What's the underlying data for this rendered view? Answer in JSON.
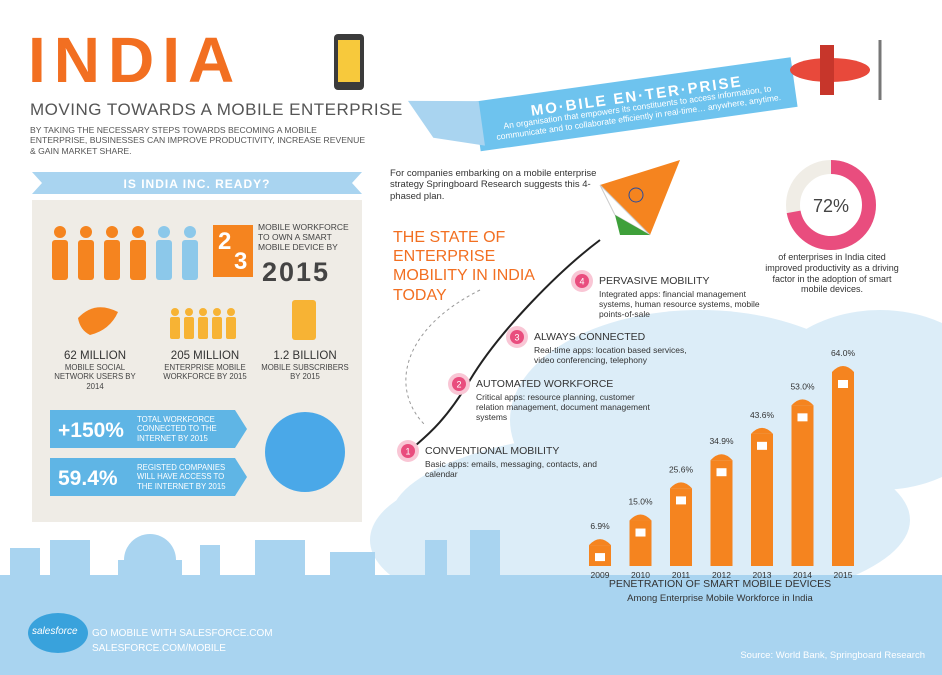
{
  "header": {
    "title": "INDIA",
    "subtitle": "MOVING TOWARDS A MOBILE ENTERPRISE",
    "intro": "BY TAKING THE NECESSARY STEPS TOWARDS BECOMING A MOBILE ENTERPRISE, BUSINESSES CAN IMPROVE PRODUCTIVITY, INCREASE REVENUE & GAIN MARKET SHARE."
  },
  "banner": {
    "title": "MO·BILE EN·TER·PRISE",
    "text": "An organisation that empowers its constituents to access information, to communicate and to collaborate efficiently in real-time… anywhere, anytime."
  },
  "ready": {
    "heading": "IS INDIA INC. READY?",
    "numerator": "2",
    "denominator": "3",
    "fraction_text": "MOBILE WORKFORCE TO OWN A SMART MOBILE DEVICE BY",
    "year": "2015",
    "stats": [
      {
        "value": "62 MILLION",
        "label": "MOBILE SOCIAL NETWORK USERS BY 2014"
      },
      {
        "value": "205 MILLION",
        "label": "ENTERPRISE MOBILE WORKFORCE BY 2015"
      },
      {
        "value": "1.2 BILLION",
        "label": "MOBILE SUBSCRIBERS BY 2015"
      }
    ],
    "highlights": [
      {
        "value": "+150%",
        "label": "TOTAL WORKFORCE CONNECTED TO THE INTERNET BY 2015"
      },
      {
        "value": "59.4%",
        "label": "REGISTED COMPANIES WILL HAVE ACCESS TO THE INTERNET BY 2015"
      }
    ]
  },
  "phases": {
    "intro": "For companies embarking on a mobile enterprise strategy Springboard Research suggests this 4-phased plan.",
    "heading": "THE STATE OF ENTERPRISE MOBILITY IN INDIA TODAY",
    "steps": [
      {
        "number": "1",
        "title": "CONVENTIONAL MOBILITY",
        "text": "Basic apps: emails, messaging, contacts, and calendar"
      },
      {
        "number": "2",
        "title": "AUTOMATED WORKFORCE",
        "text": "Critical apps: resource planning, customer relation management, document management systems"
      },
      {
        "number": "3",
        "title": "ALWAYS CONNECTED",
        "text": "Real-time apps: location based services, video conferencing, telephony"
      },
      {
        "number": "4",
        "title": "PERVASIVE MOBILITY",
        "text": "Integrated apps: financial management systems, human resource systems, mobile points-of-sale"
      }
    ]
  },
  "donut": {
    "value": 72,
    "label": "72%",
    "text": "of enterprises in India cited improved productivity as a driving factor in the adoption of smart mobile devices."
  },
  "bar_chart": {
    "title": "PENETRATION OF SMART MOBILE DEVICES",
    "subtitle": "Among Enterprise Mobile Workforce in India",
    "categories": [
      "2009",
      "2010",
      "2011",
      "2012",
      "2013",
      "2014",
      "2015"
    ],
    "values": [
      6.9,
      15.0,
      25.6,
      34.9,
      43.6,
      53.0,
      64.0
    ],
    "value_labels": [
      "6.9%",
      "15.0%",
      "25.6%",
      "34.9%",
      "43.6%",
      "53.0%",
      "64.0%"
    ],
    "color": "#f5841f"
  },
  "footer": {
    "logo": "salesforce",
    "cta": "GO MOBILE WITH SALESFORCE.COM",
    "url": "SALESFORCE.COM/MOBILE",
    "source": "Source: World Bank, Springboard Research"
  }
}
